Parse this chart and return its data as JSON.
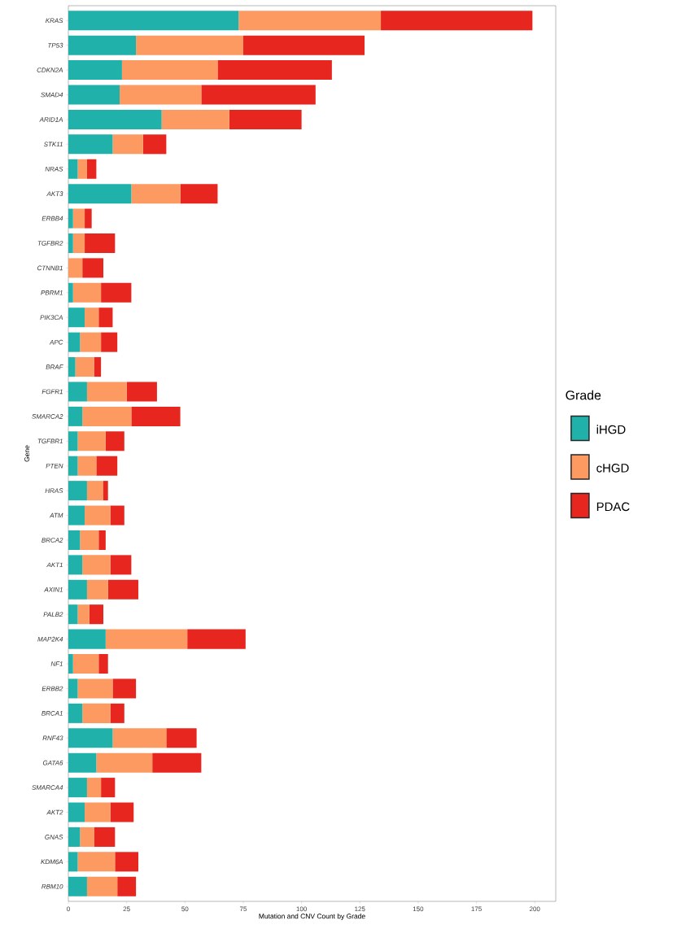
{
  "chart_data": {
    "type": "bar",
    "orientation": "horizontal",
    "stacked": true,
    "xlabel": "Mutation and CNV Count by Grade",
    "ylabel": "Gene",
    "legend_title": "Grade",
    "legend": "right",
    "categories": [
      "KRAS",
      "TP53",
      "CDKN2A",
      "SMAD4",
      "ARID1A",
      "STK11",
      "NRAS",
      "AKT3",
      "ERBB4",
      "TGFBR2",
      "CTNNB1",
      "PBRM1",
      "PIK3CA",
      "APC",
      "BRAF",
      "FGFR1",
      "SMARCA2",
      "TGFBR1",
      "PTEN",
      "HRAS",
      "ATM",
      "BRCA2",
      "AKT1",
      "AXIN1",
      "PALB2",
      "MAP2K4",
      "NF1",
      "ERBB2",
      "BRCA1",
      "RNF43",
      "GATA6",
      "SMARCA4",
      "AKT2",
      "GNAS",
      "KDM6A",
      "RBM10"
    ],
    "series": [
      {
        "name": "iHGD",
        "color": "#20b2aa",
        "values": [
          73,
          29,
          23,
          22,
          40,
          19,
          4,
          27,
          2,
          2,
          0,
          2,
          7,
          5,
          3,
          8,
          6,
          4,
          4,
          8,
          7,
          5,
          6,
          8,
          4,
          16,
          2,
          4,
          6,
          19,
          12,
          8,
          7,
          5,
          4,
          8
        ]
      },
      {
        "name": "cHGD",
        "color": "#fc9a62",
        "values": [
          61,
          46,
          41,
          35,
          29,
          13,
          4,
          21,
          5,
          5,
          6,
          12,
          6,
          9,
          8,
          17,
          21,
          12,
          8,
          7,
          11,
          8,
          12,
          9,
          5,
          35,
          11,
          15,
          12,
          23,
          24,
          6,
          11,
          6,
          16,
          13
        ]
      },
      {
        "name": "PDAC",
        "color": "#e6261f",
        "values": [
          65,
          52,
          49,
          49,
          31,
          10,
          4,
          16,
          3,
          13,
          9,
          13,
          6,
          7,
          3,
          13,
          21,
          8,
          9,
          2,
          6,
          3,
          9,
          13,
          6,
          25,
          4,
          10,
          6,
          13,
          21,
          6,
          10,
          9,
          10,
          8
        ]
      }
    ],
    "xlim": [
      0,
      209
    ],
    "xticks": [
      0,
      25,
      50,
      75,
      100,
      125,
      150,
      175,
      200
    ]
  }
}
